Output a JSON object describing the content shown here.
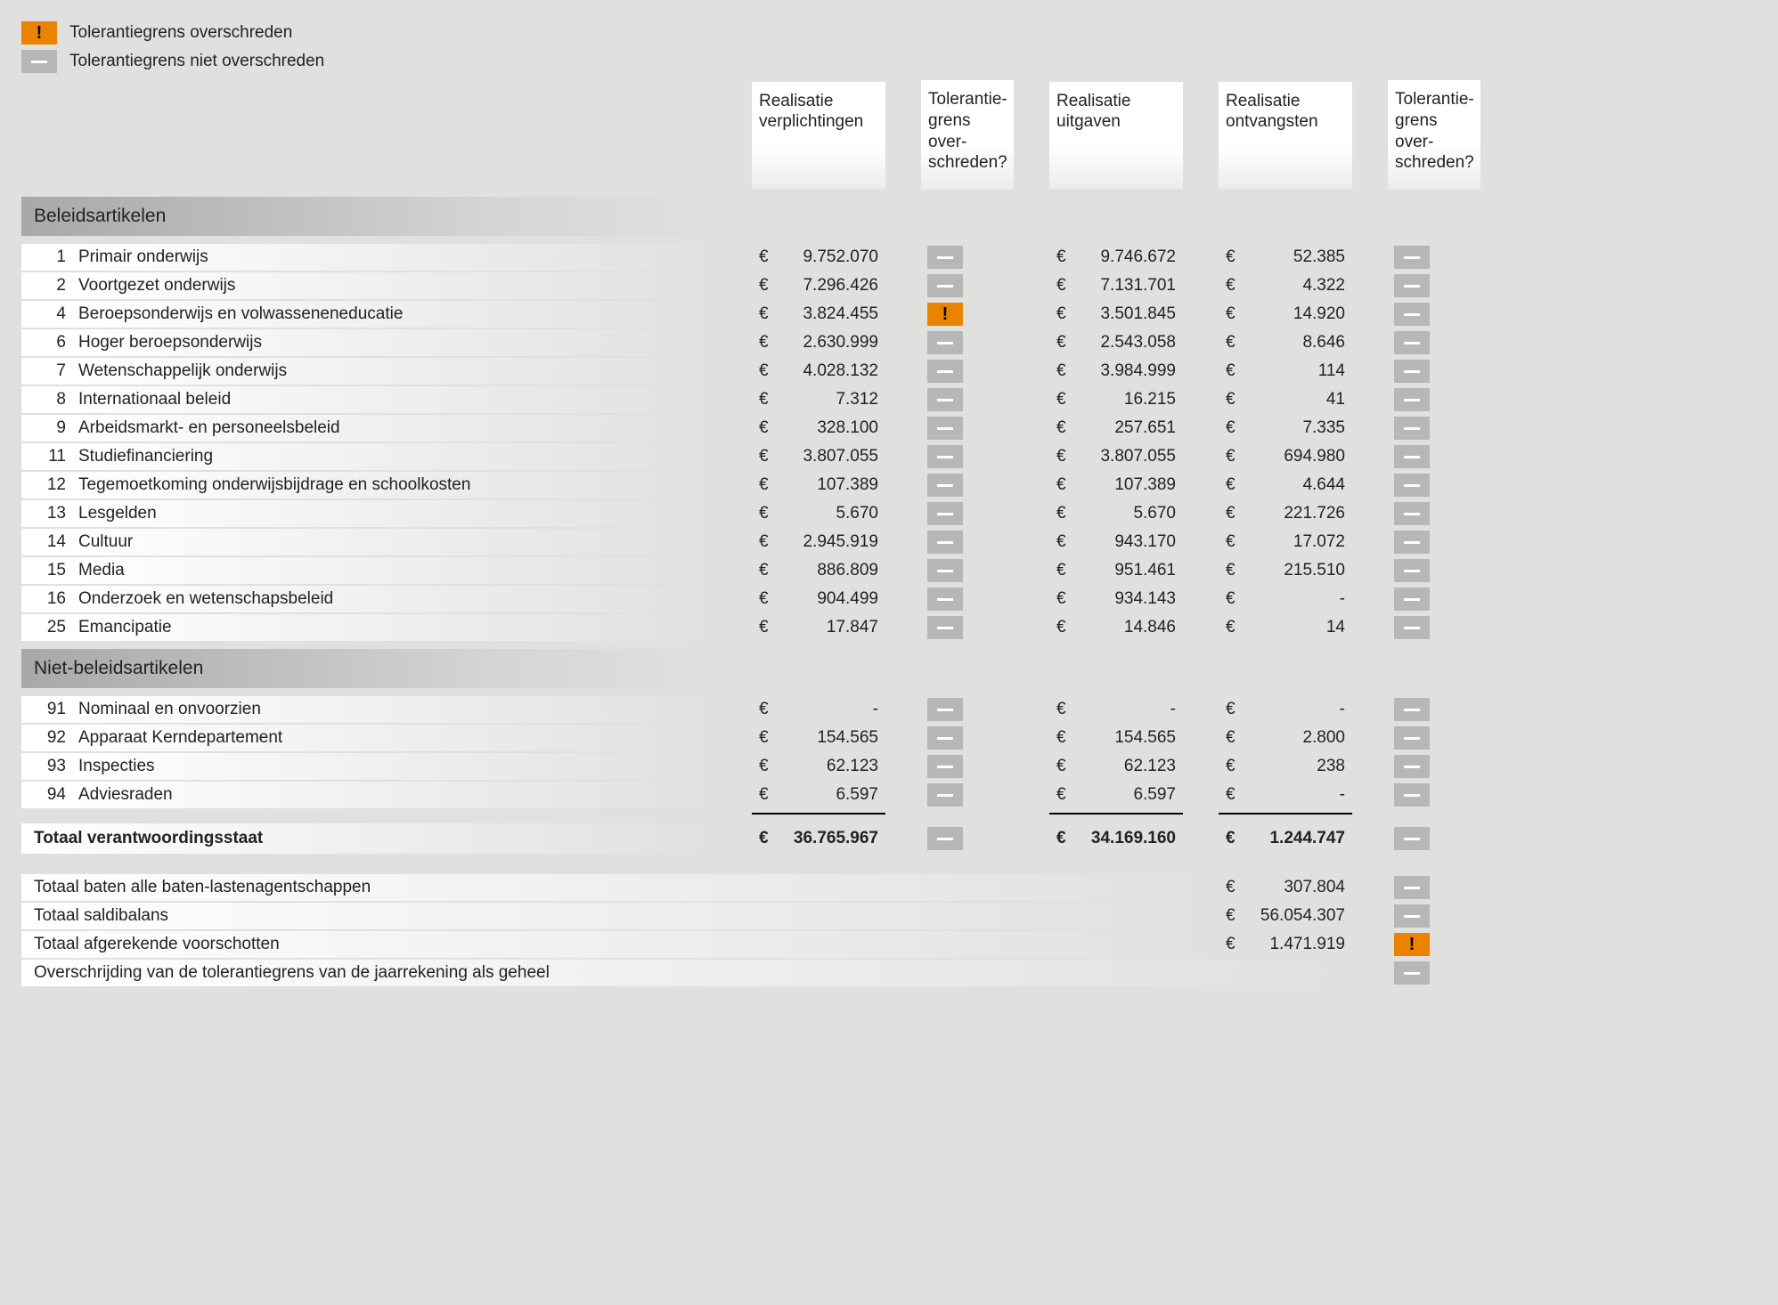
{
  "legend": {
    "exceeded": "Tolerantiegrens overschreden",
    "not_exceeded": "Tolerantiegrens niet overschreden"
  },
  "currency": "€",
  "headers": {
    "col_verplichtingen": "Realisatie verplichtingen",
    "col_tolerantie1": "Tolerantie-grens over-schreden?",
    "col_uitgaven": "Realisatie uitgaven",
    "col_ontvangsten": "Realisatie ontvangsten",
    "col_tolerantie2": "Tolerantie-grens over-schreden?"
  },
  "sections": [
    {
      "title": "Beleidsartikelen",
      "rows": [
        {
          "num": "1",
          "label": "Primair onderwijs",
          "verpl": "9.752.070",
          "t1": false,
          "uitg": "9.746.672",
          "ontv": "52.385",
          "t2": false
        },
        {
          "num": "2",
          "label": "Voortgezet onderwijs",
          "verpl": "7.296.426",
          "t1": false,
          "uitg": "7.131.701",
          "ontv": "4.322",
          "t2": false
        },
        {
          "num": "4",
          "label": "Beroepsonderwijs en volwasseneneducatie",
          "verpl": "3.824.455",
          "t1": true,
          "uitg": "3.501.845",
          "ontv": "14.920",
          "t2": false
        },
        {
          "num": "6",
          "label": "Hoger beroepsonderwijs",
          "verpl": "2.630.999",
          "t1": false,
          "uitg": "2.543.058",
          "ontv": "8.646",
          "t2": false
        },
        {
          "num": "7",
          "label": "Wetenschappelijk onderwijs",
          "verpl": "4.028.132",
          "t1": false,
          "uitg": "3.984.999",
          "ontv": "114",
          "t2": false
        },
        {
          "num": "8",
          "label": "Internationaal beleid",
          "verpl": "7.312",
          "t1": false,
          "uitg": "16.215",
          "ontv": "41",
          "t2": false
        },
        {
          "num": "9",
          "label": "Arbeidsmarkt- en personeelsbeleid",
          "verpl": "328.100",
          "t1": false,
          "uitg": "257.651",
          "ontv": "7.335",
          "t2": false
        },
        {
          "num": "11",
          "label": "Studiefinanciering",
          "verpl": "3.807.055",
          "t1": false,
          "uitg": "3.807.055",
          "ontv": "694.980",
          "t2": false
        },
        {
          "num": "12",
          "label": "Tegemoetkoming onderwijsbijdrage en schoolkosten",
          "verpl": "107.389",
          "t1": false,
          "uitg": "107.389",
          "ontv": "4.644",
          "t2": false
        },
        {
          "num": "13",
          "label": "Lesgelden",
          "verpl": "5.670",
          "t1": false,
          "uitg": "5.670",
          "ontv": "221.726",
          "t2": false
        },
        {
          "num": "14",
          "label": "Cultuur",
          "verpl": "2.945.919",
          "t1": false,
          "uitg": "943.170",
          "ontv": "17.072",
          "t2": false
        },
        {
          "num": "15",
          "label": "Media",
          "verpl": "886.809",
          "t1": false,
          "uitg": "951.461",
          "ontv": "215.510",
          "t2": false
        },
        {
          "num": "16",
          "label": "Onderzoek en wetenschapsbeleid",
          "verpl": "904.499",
          "t1": false,
          "uitg": "934.143",
          "ontv": "-",
          "t2": false
        },
        {
          "num": "25",
          "label": "Emancipatie",
          "verpl": "17.847",
          "t1": false,
          "uitg": "14.846",
          "ontv": "14",
          "t2": false
        }
      ]
    },
    {
      "title": "Niet-beleidsartikelen",
      "rows": [
        {
          "num": "91",
          "label": "Nominaal en onvoorzien",
          "verpl": "-",
          "t1": false,
          "uitg": "-",
          "ontv": "-",
          "t2": false
        },
        {
          "num": "92",
          "label": "Apparaat Kerndepartement",
          "verpl": "154.565",
          "t1": false,
          "uitg": "154.565",
          "ontv": "2.800",
          "t2": false
        },
        {
          "num": "93",
          "label": "Inspecties",
          "verpl": "62.123",
          "t1": false,
          "uitg": "62.123",
          "ontv": "238",
          "t2": false
        },
        {
          "num": "94",
          "label": "Adviesraden",
          "verpl": "6.597",
          "t1": false,
          "uitg": "6.597",
          "ontv": "-",
          "t2": false
        }
      ]
    }
  ],
  "totals": {
    "label": "Totaal verantwoordingsstaat",
    "verpl": "36.765.967",
    "t1": false,
    "uitg": "34.169.160",
    "ontv": "1.244.747",
    "t2": false
  },
  "bottom_rows": [
    {
      "label": "Totaal baten alle baten-lastenagentschappen",
      "ontv": "307.804",
      "t2": false
    },
    {
      "label": "Totaal saldibalans",
      "ontv": "56.054.307",
      "t2": false
    },
    {
      "label": "Totaal afgerekende voorschotten",
      "ontv": "1.471.919",
      "t2": true
    },
    {
      "label": "Overschrijding van de tolerantiegrens van de jaarrekening als geheel",
      "ontv": null,
      "t2": false
    }
  ],
  "colors": {
    "badge_exceeded_bg": "#e98300",
    "badge_not_bg": "#b7b7b5",
    "page_bg": "#e0e0de",
    "text": "#222222"
  }
}
